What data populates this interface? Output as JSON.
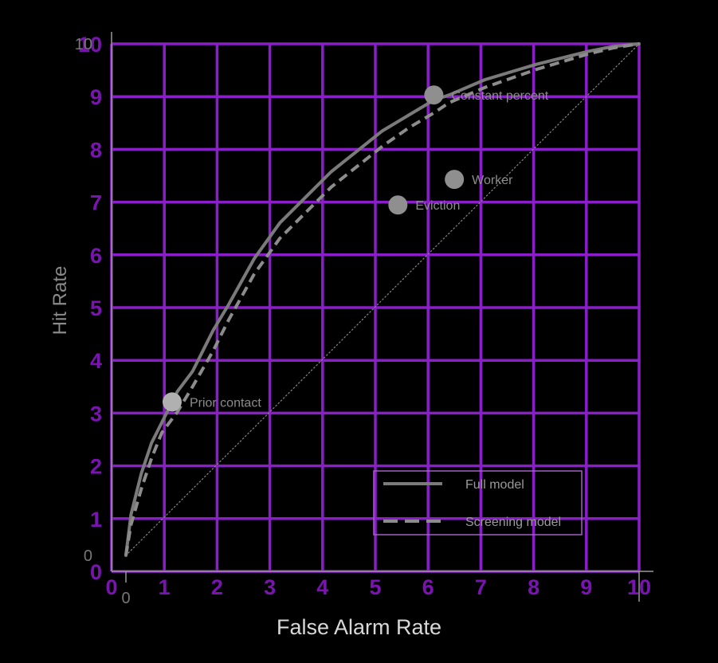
{
  "chart_data": {
    "type": "line",
    "xlabel": "False Alarm Rate",
    "ylabel": "Hit Rate",
    "xlim": [
      0,
      10
    ],
    "ylim": [
      0,
      10
    ],
    "grid": true,
    "x_ticks": [
      "0",
      "1",
      "2",
      "3",
      "4",
      "5",
      "6",
      "7",
      "8",
      "9",
      "10"
    ],
    "y_ticks": [
      "0",
      "1",
      "2",
      "3",
      "4",
      "5",
      "6",
      "7",
      "8",
      "9",
      "10"
    ],
    "x_ticks_grey": [
      "0"
    ],
    "y_ticks_grey": [
      "0",
      "10"
    ],
    "series": [
      {
        "name": "Full model",
        "style": "solid",
        "color": "#7a7a7a",
        "x": [
          0,
          0.1,
          0.3,
          0.5,
          0.7,
          1.0,
          1.3,
          1.7,
          2.0,
          2.5,
          3.0,
          3.5,
          4.0,
          4.5,
          5.0,
          5.5,
          6.0,
          6.3,
          7.0,
          8.0,
          9.0,
          9.5,
          10
        ],
        "y": [
          0,
          0.8,
          1.6,
          2.2,
          2.6,
          3.2,
          3.6,
          4.4,
          4.9,
          5.8,
          6.5,
          7.0,
          7.5,
          7.9,
          8.3,
          8.6,
          8.9,
          9.0,
          9.3,
          9.6,
          9.85,
          9.95,
          10
        ]
      },
      {
        "name": "Screening model",
        "style": "dashed",
        "color": "#8c8c8c",
        "x": [
          0,
          0.1,
          0.3,
          0.5,
          0.7,
          1.0,
          1.3,
          1.7,
          2.0,
          2.5,
          3.0,
          3.5,
          4.0,
          4.5,
          5.0,
          5.5,
          6.0,
          6.3,
          7.0,
          8.0,
          9.0,
          9.5,
          10
        ],
        "y": [
          0,
          0.6,
          1.3,
          1.9,
          2.4,
          2.8,
          3.3,
          4.0,
          4.6,
          5.5,
          6.2,
          6.7,
          7.2,
          7.6,
          8.0,
          8.35,
          8.65,
          8.85,
          9.15,
          9.5,
          9.8,
          9.92,
          10
        ]
      },
      {
        "name": "",
        "style": "dotted",
        "color": "#888888",
        "x": [
          0,
          10
        ],
        "y": [
          0,
          10
        ]
      }
    ],
    "points": [
      {
        "label": "Prior contact",
        "x": 0.9,
        "y": 3.0,
        "color": "#b0b0b0"
      },
      {
        "label": "Constant percent",
        "x": 6.0,
        "y": 9.0,
        "color": "#8f8f8f"
      },
      {
        "label": "Worker",
        "x": 6.4,
        "y": 7.35,
        "color": "#8f8f8f"
      },
      {
        "label": "Eviction",
        "x": 5.3,
        "y": 6.85,
        "color": "#8f8f8f"
      }
    ],
    "legend": {
      "placement": "bottom-right",
      "entries": [
        "Full model",
        "Screening model"
      ]
    },
    "colors": {
      "background": "#000000",
      "grid": "#8a1ec8",
      "tick_purple": "#7a14b0",
      "tick_grey": "#777777",
      "axis": "#999999",
      "legend_border": "#a060c0",
      "legend_text": "#9a9a9a"
    }
  }
}
